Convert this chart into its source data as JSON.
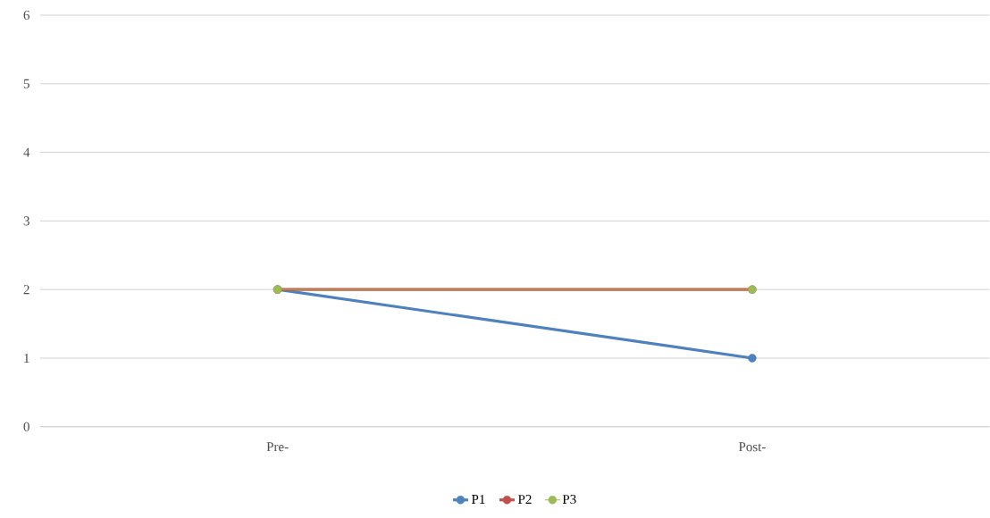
{
  "chart_data": {
    "type": "line",
    "categories": [
      "Pre-",
      "Post-"
    ],
    "series": [
      {
        "name": "P1",
        "color": "#4f81bd",
        "values": [
          2,
          1
        ]
      },
      {
        "name": "P2",
        "color": "#c0504d",
        "values": [
          2,
          2
        ]
      },
      {
        "name": "P3",
        "color": "#9bbb59",
        "values": [
          2,
          2
        ]
      }
    ],
    "ylim": [
      0,
      6
    ],
    "yticks": [
      0,
      1,
      2,
      3,
      4,
      5,
      6
    ],
    "grid": "y",
    "legend": "bottom",
    "marker": "circle",
    "line_style": "solid"
  }
}
